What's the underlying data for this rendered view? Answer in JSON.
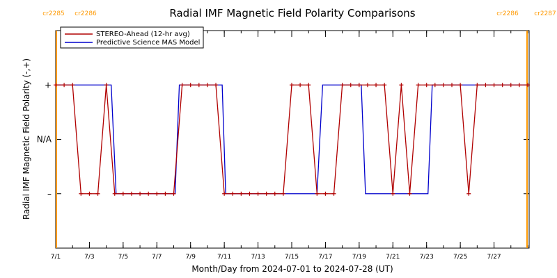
{
  "chart_data": {
    "type": "line",
    "title": "Radial IMF Magnetic Field Polarity Comparisons",
    "xlabel": "Month/Day from 2024-07-01 to 2024-07-28 (UT)",
    "ylabel": "Radial IMF Magnetic Field Polarity (-,+)",
    "xlim": [
      "2024-07-01T00:00",
      "2024-07-29T02:00"
    ],
    "x_ticks": [
      {
        "date": "2024-07-01",
        "label": "7/1"
      },
      {
        "date": "2024-07-03",
        "label": "7/3"
      },
      {
        "date": "2024-07-05",
        "label": "7/5"
      },
      {
        "date": "2024-07-07",
        "label": "7/7"
      },
      {
        "date": "2024-07-09",
        "label": "7/9"
      },
      {
        "date": "2024-07-11",
        "label": "7/11"
      },
      {
        "date": "2024-07-13",
        "label": "7/13"
      },
      {
        "date": "2024-07-15",
        "label": "7/15"
      },
      {
        "date": "2024-07-17",
        "label": "7/17"
      },
      {
        "date": "2024-07-19",
        "label": "7/19"
      },
      {
        "date": "2024-07-21",
        "label": "7/21"
      },
      {
        "date": "2024-07-23",
        "label": "7/23"
      },
      {
        "date": "2024-07-25",
        "label": "7/25"
      },
      {
        "date": "2024-07-27",
        "label": "7/27"
      }
    ],
    "y_categories": [
      {
        "value": 1,
        "label": "+"
      },
      {
        "value": 0,
        "label": "N/A"
      },
      {
        "value": -1,
        "label": "–"
      }
    ],
    "ylim": [
      -2,
      2
    ],
    "carrington_markers": [
      {
        "label": "cr2285",
        "date": "2024-07-01T01:00"
      },
      {
        "label": "cr2286",
        "date": "2024-07-01T01:00"
      },
      {
        "label": "cr2286",
        "date": "2024-07-28T23:00"
      },
      {
        "label": "cr2287",
        "date": "2024-07-28T23:00"
      }
    ],
    "legend": {
      "position": "top-left"
    },
    "series": [
      {
        "name": "STEREO-Ahead (12-hr avg)",
        "color": "#b00000",
        "markers": true,
        "points": [
          [
            "2024-07-01T00:00",
            1
          ],
          [
            "2024-07-01T12:00",
            1
          ],
          [
            "2024-07-02T00:00",
            1
          ],
          [
            "2024-07-02T12:00",
            -1
          ],
          [
            "2024-07-03T00:00",
            -1
          ],
          [
            "2024-07-03T12:00",
            -1
          ],
          [
            "2024-07-04T00:00",
            1
          ],
          [
            "2024-07-04T12:00",
            -1
          ],
          [
            "2024-07-05T00:00",
            -1
          ],
          [
            "2024-07-05T12:00",
            -1
          ],
          [
            "2024-07-06T00:00",
            -1
          ],
          [
            "2024-07-06T12:00",
            -1
          ],
          [
            "2024-07-07T00:00",
            -1
          ],
          [
            "2024-07-07T12:00",
            -1
          ],
          [
            "2024-07-08T00:00",
            -1
          ],
          [
            "2024-07-08T12:00",
            1
          ],
          [
            "2024-07-09T00:00",
            1
          ],
          [
            "2024-07-09T12:00",
            1
          ],
          [
            "2024-07-10T00:00",
            1
          ],
          [
            "2024-07-10T12:00",
            1
          ],
          [
            "2024-07-11T00:00",
            -1
          ],
          [
            "2024-07-11T12:00",
            -1
          ],
          [
            "2024-07-12T00:00",
            -1
          ],
          [
            "2024-07-12T12:00",
            -1
          ],
          [
            "2024-07-13T00:00",
            -1
          ],
          [
            "2024-07-13T12:00",
            -1
          ],
          [
            "2024-07-14T00:00",
            -1
          ],
          [
            "2024-07-14T12:00",
            -1
          ],
          [
            "2024-07-15T00:00",
            1
          ],
          [
            "2024-07-15T12:00",
            1
          ],
          [
            "2024-07-16T00:00",
            1
          ],
          [
            "2024-07-16T12:00",
            -1
          ],
          [
            "2024-07-17T00:00",
            -1
          ],
          [
            "2024-07-17T12:00",
            -1
          ],
          [
            "2024-07-18T00:00",
            1
          ],
          [
            "2024-07-18T12:00",
            1
          ],
          [
            "2024-07-19T00:00",
            1
          ],
          [
            "2024-07-19T12:00",
            1
          ],
          [
            "2024-07-20T00:00",
            1
          ],
          [
            "2024-07-20T12:00",
            1
          ],
          [
            "2024-07-21T00:00",
            -1
          ],
          [
            "2024-07-21T12:00",
            1
          ],
          [
            "2024-07-22T00:00",
            -1
          ],
          [
            "2024-07-22T12:00",
            1
          ],
          [
            "2024-07-23T00:00",
            1
          ],
          [
            "2024-07-23T12:00",
            1
          ],
          [
            "2024-07-24T00:00",
            1
          ],
          [
            "2024-07-24T12:00",
            1
          ],
          [
            "2024-07-25T00:00",
            1
          ],
          [
            "2024-07-25T12:00",
            -1
          ],
          [
            "2024-07-26T00:00",
            1
          ],
          [
            "2024-07-26T12:00",
            1
          ],
          [
            "2024-07-27T00:00",
            1
          ],
          [
            "2024-07-27T12:00",
            1
          ],
          [
            "2024-07-28T00:00",
            1
          ],
          [
            "2024-07-28T12:00",
            1
          ],
          [
            "2024-07-29T00:00",
            1
          ]
        ]
      },
      {
        "name": "Predictive Science MAS Model",
        "color": "#0000cc",
        "markers": false,
        "points": [
          [
            "2024-07-01T00:00",
            1
          ],
          [
            "2024-07-04T07:00",
            1
          ],
          [
            "2024-07-04T14:00",
            -1
          ],
          [
            "2024-07-08T02:00",
            -1
          ],
          [
            "2024-07-08T08:00",
            1
          ],
          [
            "2024-07-10T21:00",
            1
          ],
          [
            "2024-07-11T02:00",
            -1
          ],
          [
            "2024-07-16T12:00",
            -1
          ],
          [
            "2024-07-16T20:00",
            1
          ],
          [
            "2024-07-19T03:00",
            1
          ],
          [
            "2024-07-19T09:00",
            -1
          ],
          [
            "2024-07-23T02:00",
            -1
          ],
          [
            "2024-07-23T08:00",
            1
          ],
          [
            "2024-07-29T00:00",
            1
          ]
        ]
      }
    ]
  }
}
